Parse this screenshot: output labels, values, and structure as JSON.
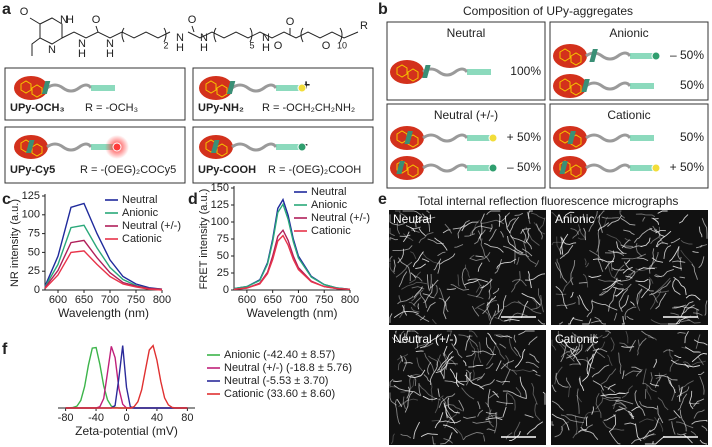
{
  "panel_labels": [
    "a",
    "b",
    "c",
    "d",
    "e",
    "f"
  ],
  "panel_a": {
    "structure_labels": [
      "O",
      "N",
      "H",
      "N",
      "N",
      "H",
      "O",
      "N",
      "H",
      "2",
      "N",
      "H",
      "O",
      "N",
      "H",
      "5",
      "N",
      "H",
      "O",
      "O",
      "O",
      "10",
      "R"
    ],
    "items": [
      {
        "name": "UPy-OCH₃",
        "r": "R = -OCH₃"
      },
      {
        "name": "UPy-NH₂",
        "r": "R = -OCH₂CH₂NH₂",
        "charge": "+"
      },
      {
        "name": "UPy-Cy5",
        "r": "R = -(OEG)₂COCy5"
      },
      {
        "name": "UPy-COOH",
        "r": "R = -(OEG)₂COOH",
        "charge": "–"
      }
    ]
  },
  "panel_b": {
    "title": "Composition of UPy-aggregates",
    "boxes": [
      {
        "label": "Neutral",
        "rows": [
          "100%"
        ]
      },
      {
        "label": "Anionic",
        "rows": [
          "– 50%",
          "50%"
        ]
      },
      {
        "label": "Neutral (+/-)",
        "rows": [
          "+ 50%",
          "– 50%"
        ]
      },
      {
        "label": "Cationic",
        "rows": [
          "50%",
          "+ 50%"
        ]
      }
    ]
  },
  "panel_e": {
    "title": "Total internal reflection fluorescence micrographs",
    "tiles": [
      "Neutral",
      "Anionic",
      "Neutral (+/-)",
      "Cationic"
    ]
  },
  "chart_data": [
    {
      "type": "line",
      "xlabel": "Wavelength (nm)",
      "ylabel": "NR intensity (a.u.)",
      "x": [
        575,
        600,
        625,
        650,
        675,
        700,
        725,
        750,
        775,
        800
      ],
      "xlim": [
        575,
        800
      ],
      "xticks": [
        600,
        650,
        700,
        750,
        800
      ],
      "ylim": [
        0,
        125
      ],
      "yticks": [
        0,
        25,
        50,
        75,
        100,
        125
      ],
      "legend": "upper right",
      "series": [
        {
          "name": "Neutral",
          "color": "#1f2a9c",
          "values": [
            5,
            45,
            110,
            115,
            75,
            40,
            18,
            8,
            3,
            1
          ]
        },
        {
          "name": "Anionic",
          "color": "#2aa87a",
          "values": [
            4,
            34,
            83,
            86,
            56,
            30,
            14,
            6,
            2,
            1
          ]
        },
        {
          "name": "Neutral (+/-)",
          "color": "#b0205a",
          "values": [
            3,
            26,
            63,
            66,
            43,
            23,
            10,
            5,
            2,
            1
          ]
        },
        {
          "name": "Cationic",
          "color": "#e8344a",
          "values": [
            2,
            20,
            50,
            52,
            34,
            18,
            8,
            4,
            1,
            0
          ]
        }
      ]
    },
    {
      "type": "line",
      "xlabel": "Wavelength (nm)",
      "ylabel": "FRET intensity (a.u.)",
      "x": [
        575,
        600,
        625,
        640,
        650,
        660,
        670,
        680,
        690,
        700,
        725,
        750,
        775,
        800
      ],
      "xlim": [
        575,
        800
      ],
      "xticks": [
        600,
        650,
        700,
        750,
        800
      ],
      "ylim": [
        0,
        150
      ],
      "yticks": [
        0,
        25,
        50,
        75,
        100,
        125,
        150
      ],
      "legend": "upper right",
      "series": [
        {
          "name": "Neutral",
          "color": "#1f2a9c",
          "values": [
            2,
            5,
            15,
            40,
            75,
            120,
            133,
            110,
            75,
            50,
            20,
            8,
            3,
            1
          ]
        },
        {
          "name": "Anionic",
          "color": "#2aa87a",
          "values": [
            2,
            5,
            14,
            38,
            71,
            114,
            126,
            104,
            71,
            47,
            19,
            8,
            3,
            1
          ]
        },
        {
          "name": "Neutral (+/-)",
          "color": "#b0205a",
          "values": [
            1,
            3,
            10,
            26,
            50,
            79,
            88,
            73,
            50,
            33,
            13,
            5,
            2,
            1
          ]
        },
        {
          "name": "Cationic",
          "color": "#e8344a",
          "values": [
            1,
            3,
            9,
            24,
            45,
            72,
            80,
            66,
            45,
            30,
            12,
            5,
            2,
            1
          ]
        }
      ]
    },
    {
      "type": "line",
      "xlabel": "Zeta-potential (mV)",
      "x": [
        -80,
        -75,
        -70,
        -65,
        -60,
        -55,
        -50,
        -45,
        -40,
        -35,
        -30,
        -25,
        -20,
        -15,
        -10,
        -5,
        0,
        5,
        10,
        15,
        20,
        25,
        30,
        35,
        40,
        45,
        50,
        55,
        60,
        65,
        70,
        75,
        80
      ],
      "xlim": [
        -90,
        90
      ],
      "xticks": [
        -80,
        -40,
        0,
        40,
        80
      ],
      "ylim": [
        0,
        1
      ],
      "legend": "right",
      "series": [
        {
          "name": "Anionic (-42.40 ± 8.57)",
          "color": "#3cb44a",
          "values": [
            0,
            0,
            0.01,
            0.03,
            0.12,
            0.34,
            0.68,
            0.95,
            0.96,
            0.69,
            0.35,
            0.13,
            0.03,
            0.01,
            0,
            0,
            0,
            0,
            0,
            0,
            0,
            0,
            0,
            0,
            0,
            0,
            0,
            0,
            0,
            0,
            0,
            0,
            0
          ]
        },
        {
          "name": "Neutral (+/-) (-18.8 ± 5.76)",
          "color": "#c0207a",
          "values": [
            0,
            0,
            0,
            0,
            0,
            0,
            0,
            0,
            0,
            0.02,
            0.15,
            0.56,
            0.98,
            0.8,
            0.31,
            0.06,
            0,
            0,
            0,
            0,
            0,
            0,
            0,
            0,
            0,
            0,
            0,
            0,
            0,
            0,
            0,
            0,
            0
          ]
        },
        {
          "name": "Neutral (-5.53 ± 3.70)",
          "color": "#2a2a9a",
          "values": [
            0,
            0,
            0,
            0,
            0,
            0,
            0,
            0,
            0,
            0,
            0,
            0,
            0,
            0.04,
            0.48,
            0.99,
            0.33,
            0.02,
            0,
            0,
            0,
            0,
            0,
            0,
            0,
            0,
            0,
            0,
            0,
            0,
            0,
            0,
            0
          ]
        },
        {
          "name": "Cationic (33.60 ± 8.60)",
          "color": "#e03030",
          "values": [
            0,
            0,
            0,
            0,
            0,
            0,
            0,
            0,
            0,
            0,
            0,
            0,
            0,
            0,
            0,
            0,
            0,
            0,
            0.02,
            0.1,
            0.29,
            0.61,
            0.92,
            0.99,
            0.76,
            0.42,
            0.16,
            0.05,
            0.01,
            0,
            0,
            0,
            0
          ]
        }
      ]
    }
  ]
}
